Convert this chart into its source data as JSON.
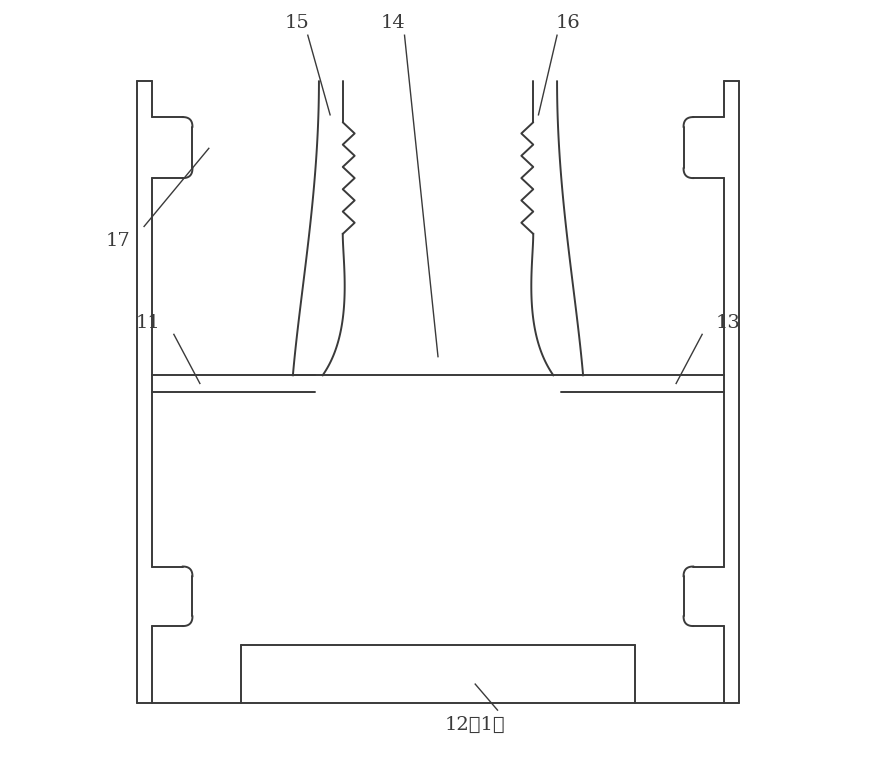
{
  "line_color": "#3a3a3a",
  "bg_color": "#ffffff",
  "lw": 1.4,
  "fig_width": 8.76,
  "fig_height": 7.58,
  "dpi": 100
}
